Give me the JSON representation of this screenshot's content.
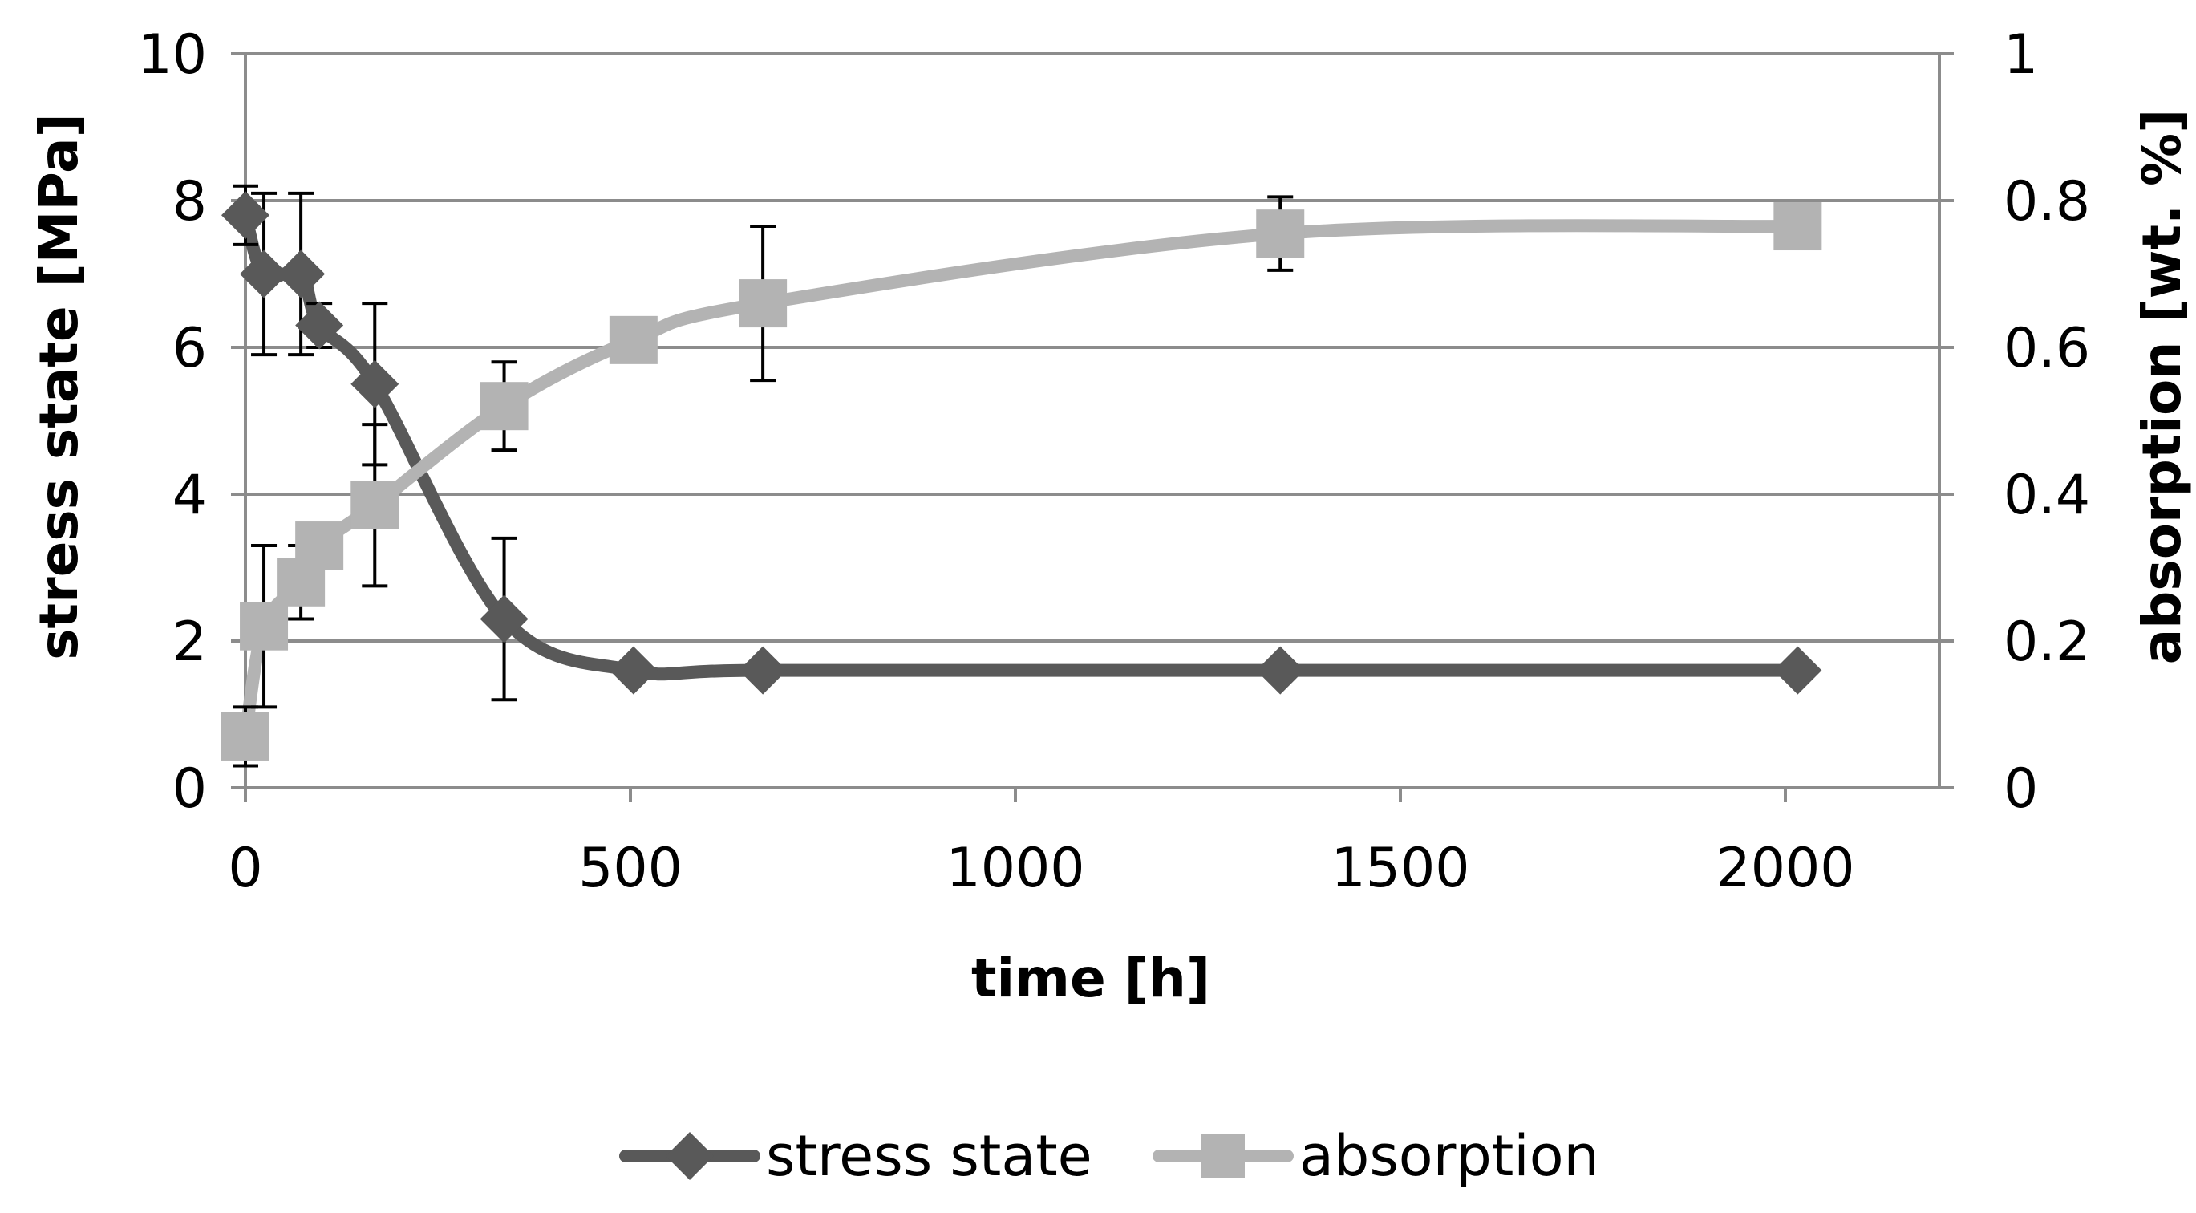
{
  "chart_data": {
    "type": "line",
    "title": "",
    "xlabel": "time [h]",
    "ylabel": "stress state [MPa]",
    "y2label": "absorption [wt. %]",
    "xlim": [
      0,
      2200
    ],
    "ylim": [
      0,
      10
    ],
    "y2lim": [
      0,
      1
    ],
    "x_ticks": [
      "0",
      "500",
      "1000",
      "1500",
      "2000"
    ],
    "y_ticks": [
      "0",
      "2",
      "4",
      "6",
      "8",
      "10"
    ],
    "y2_ticks": [
      "0",
      "0.2",
      "0.4",
      "0.6",
      "0.8",
      "1"
    ],
    "grid": true,
    "legend_position": "bottom",
    "colors": {
      "stress": "#595959",
      "absorption": "#b3b3b3",
      "grid": "#8c8c8c",
      "error": "#000000"
    },
    "series": [
      {
        "name": "stress state",
        "axis": "left",
        "marker": "diamond",
        "x": [
          0,
          24,
          72,
          96,
          168,
          336,
          504,
          672,
          1344,
          2016
        ],
        "values": [
          7.8,
          7.0,
          7.0,
          6.3,
          5.5,
          2.3,
          1.6,
          1.6,
          1.6,
          1.6
        ],
        "errors": [
          0.4,
          1.1,
          1.1,
          0.3,
          1.1,
          1.1,
          0,
          0,
          0,
          0
        ]
      },
      {
        "name": "absorption",
        "axis": "right",
        "marker": "square",
        "x": [
          0,
          24,
          72,
          96,
          168,
          336,
          504,
          672,
          1344,
          2016
        ],
        "values": [
          0.07,
          0.22,
          0.28,
          0.33,
          0.385,
          0.52,
          0.61,
          0.66,
          0.755,
          0.765
        ],
        "errors": [
          0.04,
          0.11,
          0.05,
          0.01,
          0.11,
          0.06,
          0.02,
          0.105,
          0.05,
          0.03
        ]
      }
    ]
  }
}
